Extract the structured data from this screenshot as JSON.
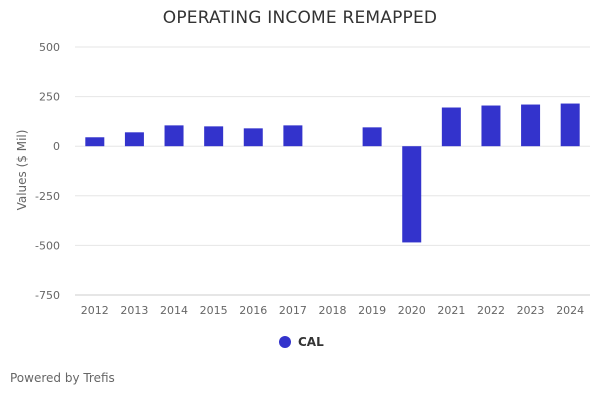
{
  "chart_data": {
    "type": "bar",
    "title": "OPERATING INCOME REMAPPED",
    "ylabel": "Values ($ Mil)",
    "xlabel": "",
    "categories": [
      "2012",
      "2013",
      "2014",
      "2015",
      "2016",
      "2017",
      "2018",
      "2019",
      "2020",
      "2021",
      "2022",
      "2023",
      "2024"
    ],
    "series": [
      {
        "name": "CAL",
        "color": "#3333cc",
        "values": [
          45,
          70,
          105,
          100,
          90,
          105,
          null,
          95,
          -485,
          195,
          205,
          210,
          215
        ]
      }
    ],
    "ylim": [
      -750,
      500
    ],
    "yticks": [
      500,
      250,
      0,
      -250,
      -500,
      -750
    ],
    "ytick_labels": [
      "500",
      "250",
      "0",
      "-250",
      "-500",
      "-750"
    ],
    "grid": true,
    "legend_position": "bottom-center"
  },
  "footer": {
    "credits": "Powered by Trefis"
  }
}
